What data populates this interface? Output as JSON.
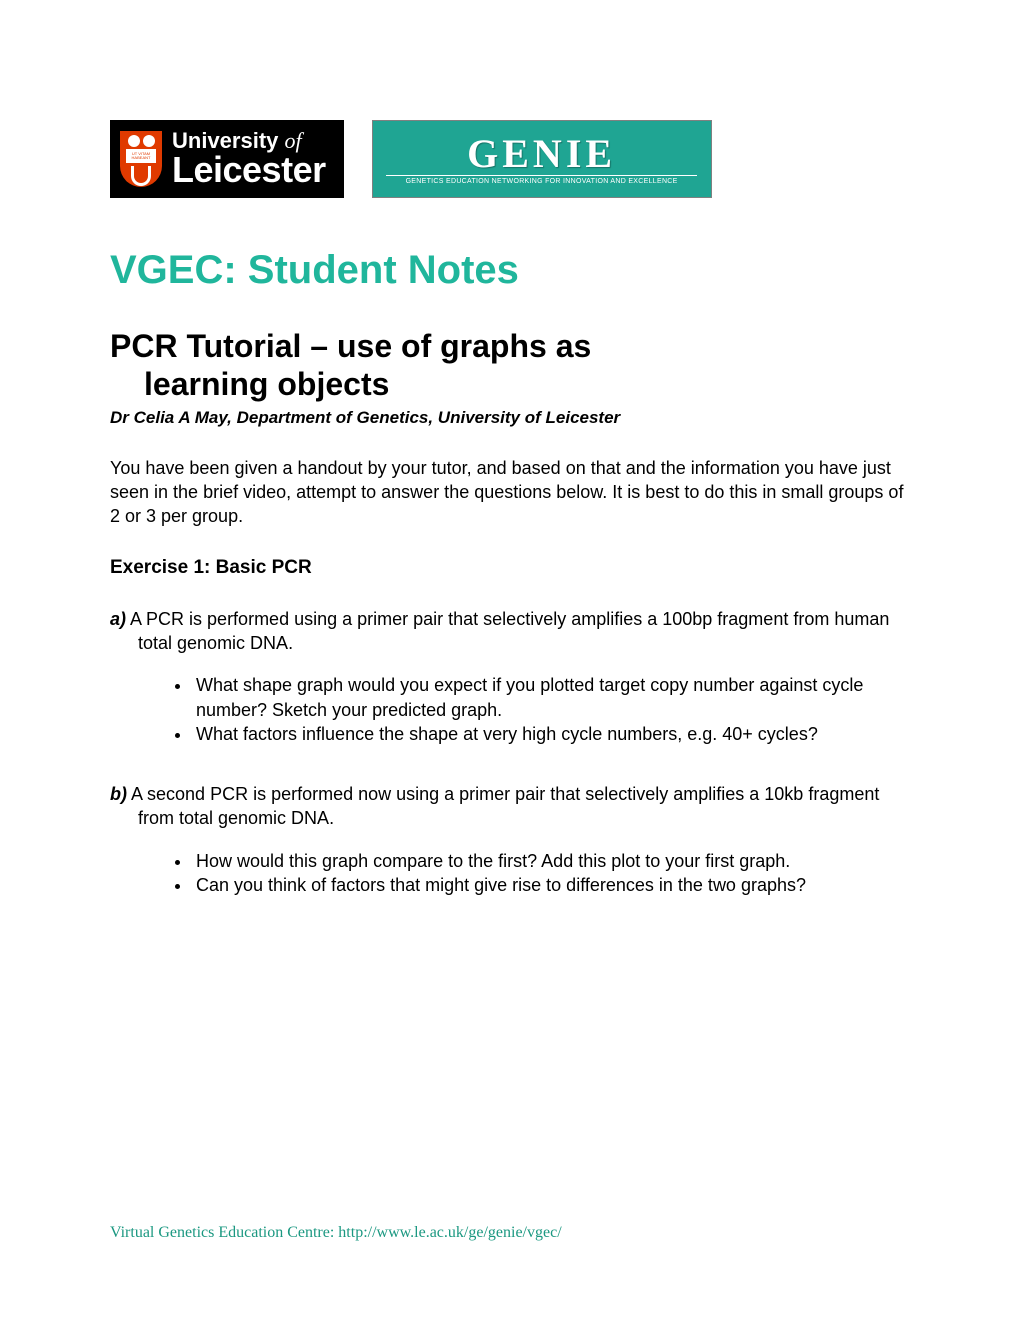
{
  "logos": {
    "uol": {
      "line1_a": "University",
      "line1_b": "of",
      "line2": "Leicester",
      "shield_color": "#e03a00",
      "bg_color": "#000000",
      "text_color": "#ffffff",
      "motto": "UT VITAM HABEANT"
    },
    "genie": {
      "title": "GENIE",
      "subtitle": "GENETICS EDUCATION NETWORKING FOR INNOVATION AND EXCELLENCE",
      "bg_color": "#1fa593",
      "text_color": "#ffffff"
    }
  },
  "page_title": "VGEC: Student Notes",
  "page_title_color": "#20b69c",
  "subtitle_line1": "PCR Tutorial – use of graphs as",
  "subtitle_line2": "learning objects",
  "author": "Dr Celia A May, Department of Genetics, University of Leicester",
  "intro": "You have been given a handout by your tutor, and based on that and the information you have just seen in the brief video, attempt to answer the questions below.  It is best to do this in small groups of 2 or 3 per group.",
  "exercise_heading": "Exercise 1: Basic PCR",
  "q_a": {
    "label": "a)",
    "text": " A PCR is performed using a primer pair that selectively amplifies a 100bp fragment from human total genomic DNA.",
    "bullets": [
      "What shape graph would you expect if you plotted target copy number against cycle number? Sketch your predicted graph.",
      "What factors influence the shape at very high cycle numbers, e.g. 40+ cycles?"
    ]
  },
  "q_b": {
    "label": "b)",
    "text": " A second PCR is performed now using a primer pair that selectively amplifies a 10kb fragment from total genomic DNA.",
    "bullets": [
      "How would this graph compare to the first?  Add this plot to your first graph.",
      "Can you think of factors that might give rise to differences in the two graphs?"
    ]
  },
  "footer": "Virtual Genetics Education Centre: http://www.le.ac.uk/ge/genie/vgec/",
  "footer_color": "#1b9881"
}
